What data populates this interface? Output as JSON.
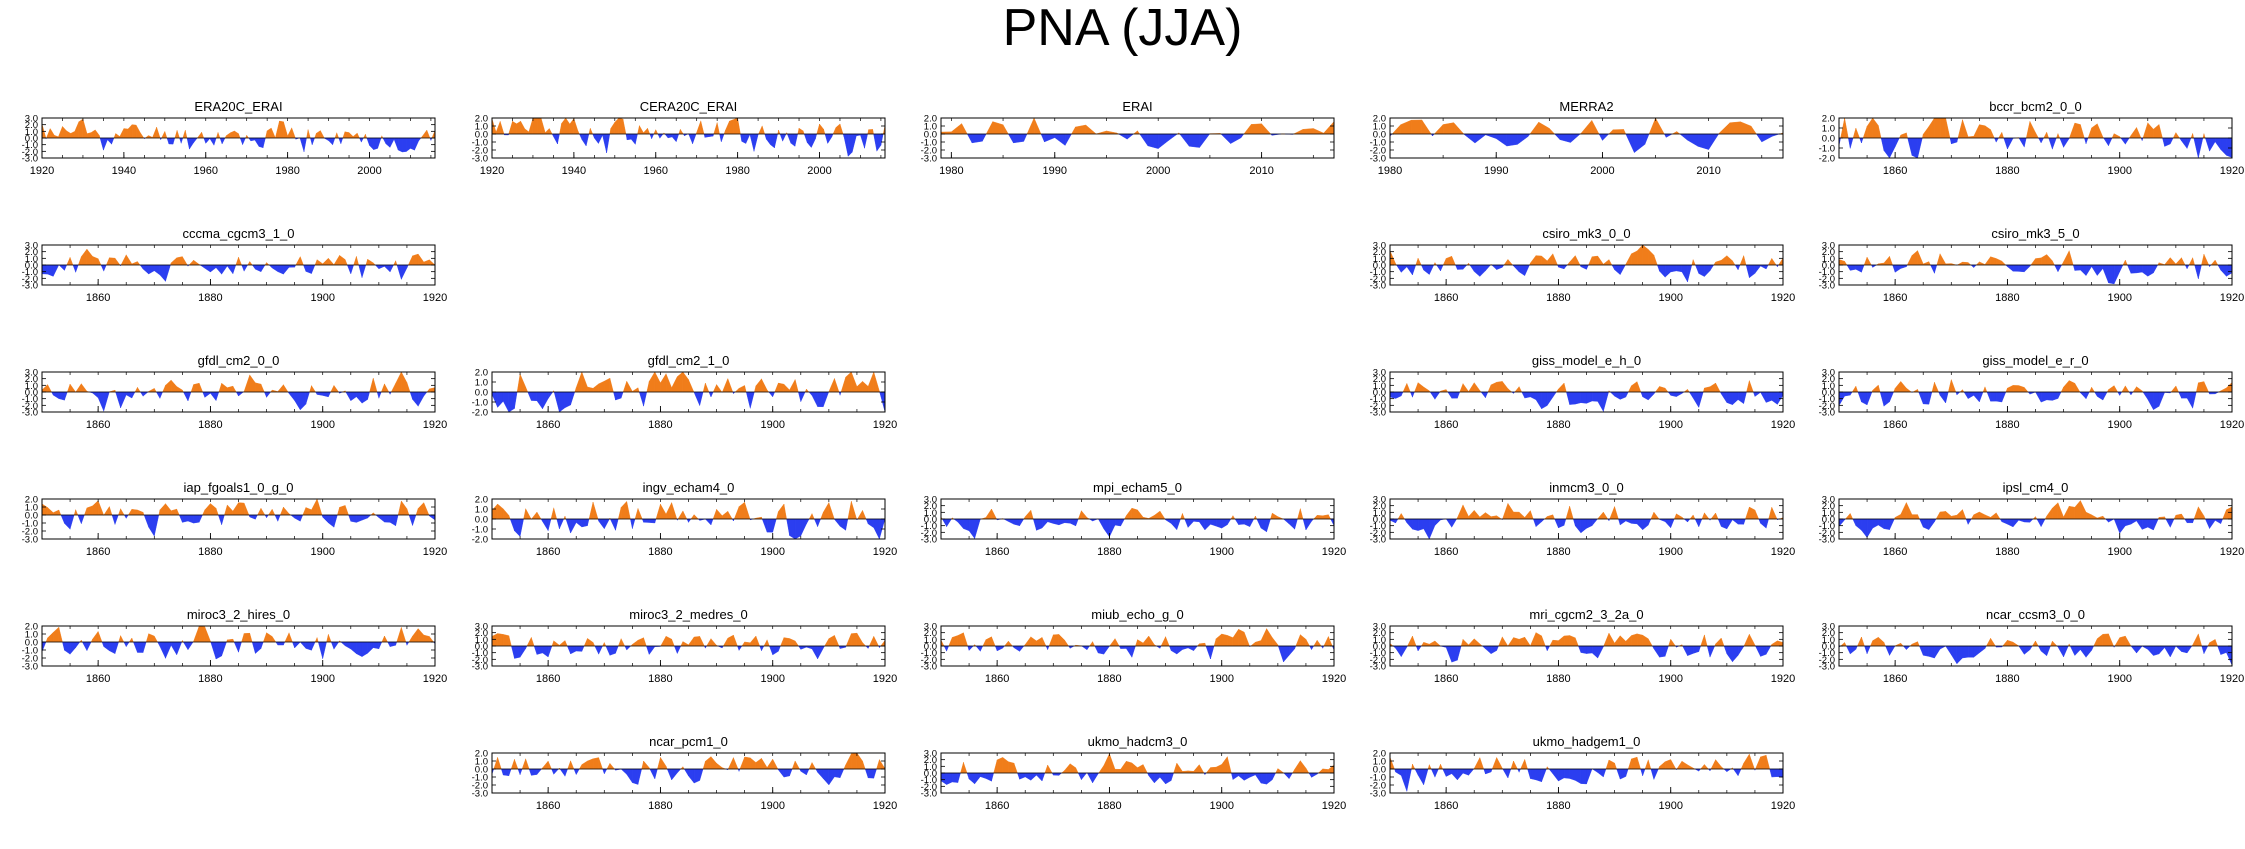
{
  "title": "PNA (JJA)",
  "colors": {
    "positive": "#f07d1a",
    "negative": "#2b3ef0",
    "axis": "#000000"
  },
  "chart_data": [
    {
      "type": "area",
      "name": "ERA20C_ERAI",
      "title": "ERA20C_ERAI",
      "x_start": 1920,
      "x_end": 2016,
      "ylim": [
        -3,
        3
      ],
      "yticks": [
        "3.0",
        "2.0",
        "1.0",
        "0.0",
        "-1.0",
        "-2.0",
        "-3.0"
      ],
      "xticks": [
        "1920",
        "1940",
        "1960",
        "1980",
        "2000"
      ],
      "seed": 11,
      "bias": 1.0
    },
    {
      "type": "area",
      "name": "CERA20C_ERAI",
      "title": "CERA20C_ERAI",
      "x_start": 1920,
      "x_end": 2016,
      "ylim": [
        -3,
        2
      ],
      "yticks": [
        "2.0",
        "1.0",
        "0.0",
        "-1.0",
        "-2.0",
        "-3.0"
      ],
      "xticks": [
        "1920",
        "1940",
        "1960",
        "1980",
        "2000"
      ],
      "seed": 12,
      "bias": 0.8
    },
    {
      "type": "area",
      "name": "ERAI",
      "title": "ERAI",
      "x_start": 1979,
      "x_end": 2017,
      "ylim": [
        -3,
        2
      ],
      "yticks": [
        "2.0",
        "1.0",
        "0.0",
        "-1.0",
        "-2.0",
        "-3.0"
      ],
      "xticks": [
        "1980",
        "1990",
        "2000",
        "2010"
      ],
      "seed": 13,
      "bias": 0
    },
    {
      "type": "area",
      "name": "MERRA2",
      "title": "MERRA2",
      "x_start": 1980,
      "x_end": 2017,
      "ylim": [
        -3,
        2
      ],
      "yticks": [
        "2.0",
        "1.0",
        "0.0",
        "-1.0",
        "-2.0",
        "-3.0"
      ],
      "xticks": [
        "1980",
        "1990",
        "2000",
        "2010"
      ],
      "seed": 14,
      "bias": 0
    },
    {
      "type": "area",
      "name": "bccr_bcm2_0_0",
      "title": "bccr_bcm2_0_0",
      "x_start": 1850,
      "x_end": 1920,
      "ylim": [
        -2,
        2
      ],
      "yticks": [
        "2.0",
        "1.0",
        "0.0",
        "-1.0",
        "-2.0"
      ],
      "xticks": [
        "1860",
        "1880",
        "1900",
        "1920"
      ],
      "seed": 15,
      "bias": 0
    },
    {
      "type": "area",
      "name": "cccma_cgcm3_1_0",
      "title": "cccma_cgcm3_1_0",
      "x_start": 1850,
      "x_end": 1920,
      "ylim": [
        -3,
        3
      ],
      "yticks": [
        "3.0",
        "2.0",
        "1.0",
        "0.0",
        "-1.0",
        "-2.0",
        "-3.0"
      ],
      "xticks": [
        "1860",
        "1880",
        "1900",
        "1920"
      ],
      "seed": 16,
      "bias": 0
    },
    {
      "type": "area",
      "name": "csiro_mk3_0_0",
      "title": "csiro_mk3_0_0",
      "x_start": 1850,
      "x_end": 1920,
      "ylim": [
        -3,
        3
      ],
      "yticks": [
        "3.0",
        "2.0",
        "1.0",
        "0.0",
        "-1.0",
        "-2.0",
        "-3.0"
      ],
      "xticks": [
        "1860",
        "1880",
        "1900",
        "1920"
      ],
      "seed": 17,
      "bias": 0
    },
    {
      "type": "area",
      "name": "csiro_mk3_5_0",
      "title": "csiro_mk3_5_0",
      "x_start": 1850,
      "x_end": 1920,
      "ylim": [
        -3,
        3
      ],
      "yticks": [
        "3.0",
        "2.0",
        "1.0",
        "0.0",
        "-1.0",
        "-2.0",
        "-3.0"
      ],
      "xticks": [
        "1860",
        "1880",
        "1900",
        "1920"
      ],
      "seed": 18,
      "bias": 0
    },
    {
      "type": "area",
      "name": "gfdl_cm2_0_0",
      "title": "gfdl_cm2_0_0",
      "x_start": 1850,
      "x_end": 1920,
      "ylim": [
        -3,
        3
      ],
      "yticks": [
        "3.0",
        "2.0",
        "1.0",
        "0.0",
        "-1.0",
        "-2.0",
        "-3.0"
      ],
      "xticks": [
        "1860",
        "1880",
        "1900",
        "1920"
      ],
      "seed": 19,
      "bias": 0
    },
    {
      "type": "area",
      "name": "gfdl_cm2_1_0",
      "title": "gfdl_cm2_1_0",
      "x_start": 1850,
      "x_end": 1920,
      "ylim": [
        -2,
        2
      ],
      "yticks": [
        "2.0",
        "1.0",
        "0.0",
        "-1.0",
        "-2.0"
      ],
      "xticks": [
        "1860",
        "1880",
        "1900",
        "1920"
      ],
      "seed": 20,
      "bias": 0
    },
    {
      "type": "area",
      "name": "giss_model_e_h_0",
      "title": "giss_model_e_h_0",
      "x_start": 1850,
      "x_end": 1920,
      "ylim": [
        -3,
        3
      ],
      "yticks": [
        "3.0",
        "2.0",
        "1.0",
        "0.0",
        "-1.0",
        "-2.0",
        "-3.0"
      ],
      "xticks": [
        "1860",
        "1880",
        "1900",
        "1920"
      ],
      "seed": 21,
      "bias": 0
    },
    {
      "type": "area",
      "name": "giss_model_e_r_0",
      "title": "giss_model_e_r_0",
      "x_start": 1850,
      "x_end": 1920,
      "ylim": [
        -3,
        3
      ],
      "yticks": [
        "3.0",
        "2.0",
        "1.0",
        "0.0",
        "-1.0",
        "-2.0",
        "-3.0"
      ],
      "xticks": [
        "1860",
        "1880",
        "1900",
        "1920"
      ],
      "seed": 22,
      "bias": 0
    },
    {
      "type": "area",
      "name": "iap_fgoals1_0_g_0",
      "title": "iap_fgoals1_0_g_0",
      "x_start": 1850,
      "x_end": 1920,
      "ylim": [
        -3,
        2
      ],
      "yticks": [
        "2.0",
        "1.0",
        "0.0",
        "-1.0",
        "-2.0",
        "-3.0"
      ],
      "xticks": [
        "1860",
        "1880",
        "1900",
        "1920"
      ],
      "seed": 23,
      "bias": 0
    },
    {
      "type": "area",
      "name": "ingv_echam4_0",
      "title": "ingv_echam4_0",
      "x_start": 1850,
      "x_end": 1920,
      "ylim": [
        -2,
        2
      ],
      "yticks": [
        "2.0",
        "1.0",
        "0.0",
        "-1.0",
        "-2.0"
      ],
      "xticks": [
        "1860",
        "1880",
        "1900",
        "1920"
      ],
      "seed": 24,
      "bias": 0
    },
    {
      "type": "area",
      "name": "mpi_echam5_0",
      "title": "mpi_echam5_0",
      "x_start": 1850,
      "x_end": 1920,
      "ylim": [
        -3,
        3
      ],
      "yticks": [
        "3.0",
        "2.0",
        "1.0",
        "0.0",
        "-1.0",
        "-2.0",
        "-3.0"
      ],
      "xticks": [
        "1860",
        "1880",
        "1900",
        "1920"
      ],
      "seed": 25,
      "bias": 0
    },
    {
      "type": "area",
      "name": "inmcm3_0_0",
      "title": "inmcm3_0_0",
      "x_start": 1850,
      "x_end": 1920,
      "ylim": [
        -3,
        3
      ],
      "yticks": [
        "3.0",
        "2.0",
        "1.0",
        "0.0",
        "-1.0",
        "-2.0",
        "-3.0"
      ],
      "xticks": [
        "1860",
        "1880",
        "1900",
        "1920"
      ],
      "seed": 26,
      "bias": 0
    },
    {
      "type": "area",
      "name": "ipsl_cm4_0",
      "title": "ipsl_cm4_0",
      "x_start": 1850,
      "x_end": 1920,
      "ylim": [
        -3,
        3
      ],
      "yticks": [
        "3.0",
        "2.0",
        "1.0",
        "0.0",
        "-1.0",
        "-2.0",
        "-3.0"
      ],
      "xticks": [
        "1860",
        "1880",
        "1900",
        "1920"
      ],
      "seed": 27,
      "bias": 0
    },
    {
      "type": "area",
      "name": "miroc3_2_hires_0",
      "title": "miroc3_2_hires_0",
      "x_start": 1850,
      "x_end": 1920,
      "ylim": [
        -3,
        2
      ],
      "yticks": [
        "2.0",
        "1.0",
        "0.0",
        "-1.0",
        "-2.0",
        "-3.0"
      ],
      "xticks": [
        "1860",
        "1880",
        "1900",
        "1920"
      ],
      "seed": 28,
      "bias": 0
    },
    {
      "type": "area",
      "name": "miroc3_2_medres_0",
      "title": "miroc3_2_medres_0",
      "x_start": 1850,
      "x_end": 1920,
      "ylim": [
        -3,
        3
      ],
      "yticks": [
        "3.0",
        "2.0",
        "1.0",
        "0.0",
        "-1.0",
        "-2.0",
        "-3.0"
      ],
      "xticks": [
        "1860",
        "1880",
        "1900",
        "1920"
      ],
      "seed": 29,
      "bias": 0
    },
    {
      "type": "area",
      "name": "miub_echo_g_0",
      "title": "miub_echo_g_0",
      "x_start": 1850,
      "x_end": 1920,
      "ylim": [
        -3,
        3
      ],
      "yticks": [
        "3.0",
        "2.0",
        "1.0",
        "0.0",
        "-1.0",
        "-2.0",
        "-3.0"
      ],
      "xticks": [
        "1860",
        "1880",
        "1900",
        "1920"
      ],
      "seed": 30,
      "bias": 0
    },
    {
      "type": "area",
      "name": "mri_cgcm2_3_2a_0",
      "title": "mri_cgcm2_3_2a_0",
      "x_start": 1850,
      "x_end": 1920,
      "ylim": [
        -3,
        3
      ],
      "yticks": [
        "3.0",
        "2.0",
        "1.0",
        "0.0",
        "-1.0",
        "-2.0",
        "-3.0"
      ],
      "xticks": [
        "1860",
        "1880",
        "1900",
        "1920"
      ],
      "seed": 31,
      "bias": 0
    },
    {
      "type": "area",
      "name": "ncar_ccsm3_0_0",
      "title": "ncar_ccsm3_0_0",
      "x_start": 1850,
      "x_end": 1920,
      "ylim": [
        -3,
        3
      ],
      "yticks": [
        "3.0",
        "2.0",
        "1.0",
        "0.0",
        "-1.0",
        "-2.0",
        "-3.0"
      ],
      "xticks": [
        "1860",
        "1880",
        "1900",
        "1920"
      ],
      "seed": 32,
      "bias": 0
    },
    {
      "type": "area",
      "name": "ncar_pcm1_0",
      "title": "ncar_pcm1_0",
      "x_start": 1850,
      "x_end": 1920,
      "ylim": [
        -3,
        2
      ],
      "yticks": [
        "2.0",
        "1.0",
        "0.0",
        "-1.0",
        "-2.0",
        "-3.0"
      ],
      "xticks": [
        "1860",
        "1880",
        "1900",
        "1920"
      ],
      "seed": 33,
      "bias": 0
    },
    {
      "type": "area",
      "name": "ukmo_hadcm3_0",
      "title": "ukmo_hadcm3_0",
      "x_start": 1850,
      "x_end": 1920,
      "ylim": [
        -3,
        3
      ],
      "yticks": [
        "3.0",
        "2.0",
        "1.0",
        "0.0",
        "-1.0",
        "-2.0",
        "-3.0"
      ],
      "xticks": [
        "1860",
        "1880",
        "1900",
        "1920"
      ],
      "seed": 34,
      "bias": 0
    },
    {
      "type": "area",
      "name": "ukmo_hadgem1_0",
      "title": "ukmo_hadgem1_0",
      "x_start": 1850,
      "x_end": 1920,
      "ylim": [
        -3,
        2
      ],
      "yticks": [
        "2.0",
        "1.0",
        "0.0",
        "-1.0",
        "-2.0",
        "-3.0"
      ],
      "xticks": [
        "1860",
        "1880",
        "1900",
        "1920"
      ],
      "seed": 35,
      "bias": 0
    }
  ]
}
